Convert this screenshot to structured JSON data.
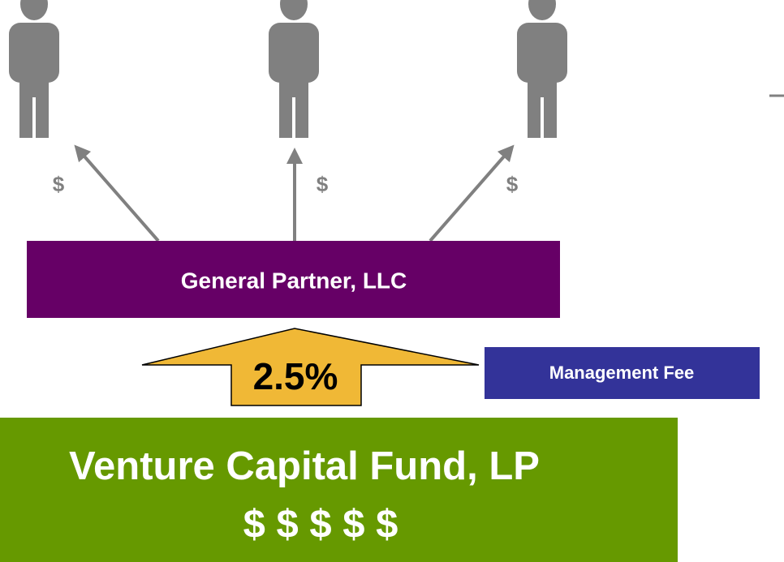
{
  "payouts": [
    "$",
    "$",
    "$"
  ],
  "general_partner": "General Partner, LLC",
  "fee": {
    "rate": "2.5%",
    "label": "Management Fee"
  },
  "fund": {
    "name": "Venture Capital Fund, LP",
    "assets": "$ $ $ $ $"
  }
}
